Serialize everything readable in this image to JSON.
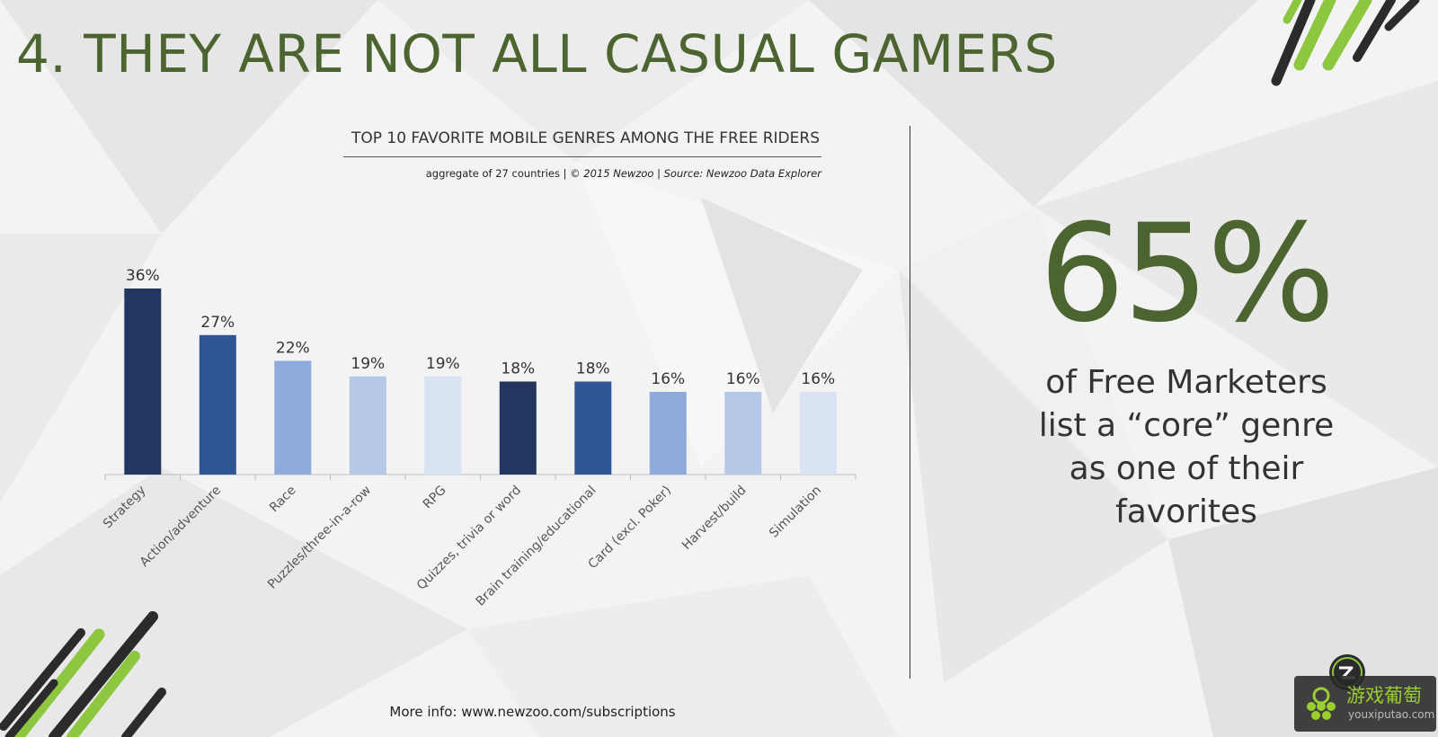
{
  "slide": {
    "title": "4. THEY ARE NOT ALL CASUAL GAMERS",
    "footer": "More info: www.newzoo.com/subscriptions"
  },
  "stat": {
    "value": "65%",
    "caption_lines": [
      "of Free Marketers",
      "list a “core” genre",
      "as one of their",
      "favorites"
    ]
  },
  "watermark": {
    "cn_text": "游戏葡萄",
    "en_text": "youxiputao.com"
  },
  "chart_data": {
    "type": "bar",
    "title": "TOP 10 FAVORITE MOBILE GENRES AMONG THE FREE RIDERS",
    "subtitle_plain": "aggregate of 27 countries | ",
    "subtitle_italic": "© 2015 Newzoo | Source: Newzoo Data Explorer",
    "categories": [
      "Strategy",
      "Action/adventure",
      "Race",
      "Puzzles/three-in-a-row",
      "RPG",
      "Quizzes, trivia or word",
      "Brain training/educational",
      "Card (excl. Poker)",
      "Harvest/build",
      "Simulation"
    ],
    "values": [
      36,
      27,
      22,
      19,
      19,
      18,
      18,
      16,
      16,
      16
    ],
    "value_labels": [
      "36%",
      "27%",
      "22%",
      "19%",
      "19%",
      "18%",
      "18%",
      "16%",
      "16%",
      "16%"
    ],
    "bar_colors": [
      "#22365f",
      "#2f5594",
      "#8eabdb",
      "#b5c8e8",
      "#d9e3f4",
      "#22365f",
      "#2f5594",
      "#8eabdb",
      "#b5c8e8",
      "#d9e3f4"
    ],
    "ylim": [
      0,
      40
    ],
    "grid": false,
    "legend": "none"
  },
  "colors": {
    "accent": "#4c6530",
    "stripe_green": "#8dc63f",
    "stripe_dark": "#2b2b2b"
  }
}
